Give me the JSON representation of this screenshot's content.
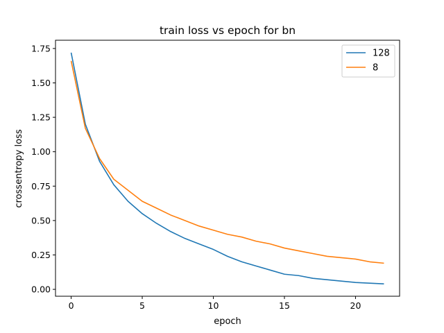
{
  "chart_data": {
    "type": "line",
    "title": "train loss vs epoch for bn",
    "xlabel": "epoch",
    "ylabel": "crossentropy loss",
    "xlim": [
      -1.1,
      23.1
    ],
    "ylim": [
      -0.05,
      1.81
    ],
    "x_ticks": [
      0,
      5,
      10,
      15,
      20
    ],
    "x_tick_labels": [
      "0",
      "5",
      "10",
      "15",
      "20"
    ],
    "y_ticks": [
      0.0,
      0.25,
      0.5,
      0.75,
      1.0,
      1.25,
      1.5,
      1.75
    ],
    "y_tick_labels": [
      "0.00",
      "0.25",
      "0.50",
      "0.75",
      "1.00",
      "1.25",
      "1.50",
      "1.75"
    ],
    "grid": false,
    "legend_position": "upper right",
    "x": [
      0,
      1,
      2,
      3,
      4,
      5,
      6,
      7,
      8,
      9,
      10,
      11,
      12,
      13,
      14,
      15,
      16,
      17,
      18,
      19,
      20,
      21,
      22
    ],
    "series": [
      {
        "name": "128",
        "color": "#1f77b4",
        "values": [
          1.72,
          1.2,
          0.93,
          0.76,
          0.64,
          0.55,
          0.48,
          0.42,
          0.37,
          0.33,
          0.29,
          0.24,
          0.2,
          0.17,
          0.14,
          0.11,
          0.1,
          0.08,
          0.07,
          0.06,
          0.05,
          0.045,
          0.04
        ]
      },
      {
        "name": "8",
        "color": "#ff7f0e",
        "values": [
          1.66,
          1.17,
          0.95,
          0.8,
          0.72,
          0.64,
          0.59,
          0.54,
          0.5,
          0.46,
          0.43,
          0.4,
          0.38,
          0.35,
          0.33,
          0.3,
          0.28,
          0.26,
          0.24,
          0.23,
          0.22,
          0.2,
          0.19
        ]
      }
    ]
  }
}
